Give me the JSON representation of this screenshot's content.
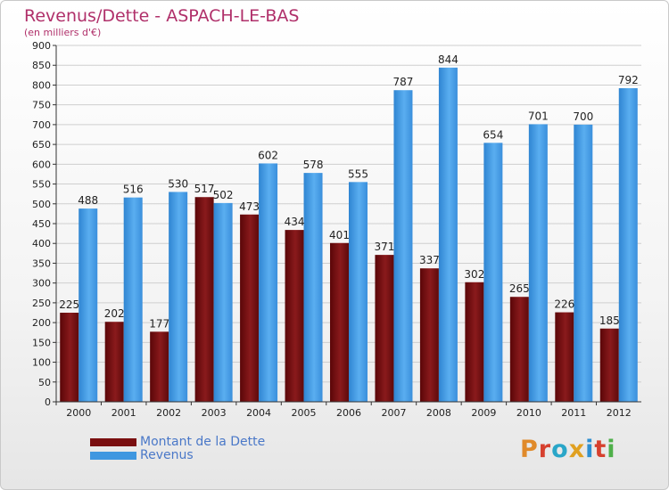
{
  "title": "Revenus/Dette - ASPACH-LE-BAS",
  "subtitle": "(en milliers d'€)",
  "logo": {
    "text": "Proxiti",
    "letter_colors": [
      "#e08a2a",
      "#d6402e",
      "#2aa6c8",
      "#e0a020",
      "#2e8fd0",
      "#d6402e",
      "#4fb04a"
    ]
  },
  "colors": {
    "dette": "#7a0f10",
    "revenus": "#3f97e0",
    "title": "#b0306a",
    "legend_text": "#4a78c8"
  },
  "legend": {
    "dette_label": "Montant de la Dette",
    "revenus_label": "Revenus",
    "placement": "bottom-left"
  },
  "chart_data": {
    "type": "bar",
    "title": "Revenus/Dette - ASPACH-LE-BAS",
    "subtitle": "(en milliers d'€)",
    "categories": [
      "2000",
      "2001",
      "2002",
      "2003",
      "2004",
      "2005",
      "2006",
      "2007",
      "2008",
      "2009",
      "2010",
      "2011",
      "2012"
    ],
    "series": [
      {
        "name": "Montant de la Dette",
        "values": [
          225,
          202,
          177,
          517,
          473,
          434,
          401,
          371,
          337,
          302,
          265,
          226,
          185
        ]
      },
      {
        "name": "Revenus",
        "values": [
          488,
          516,
          530,
          502,
          602,
          578,
          555,
          787,
          844,
          654,
          701,
          700,
          792
        ]
      }
    ],
    "ylim": [
      0,
      900
    ],
    "yticks": [
      0,
      50,
      100,
      150,
      200,
      250,
      300,
      350,
      400,
      450,
      500,
      550,
      600,
      650,
      700,
      750,
      800,
      850,
      900
    ],
    "grid": true,
    "data_labels": true
  }
}
